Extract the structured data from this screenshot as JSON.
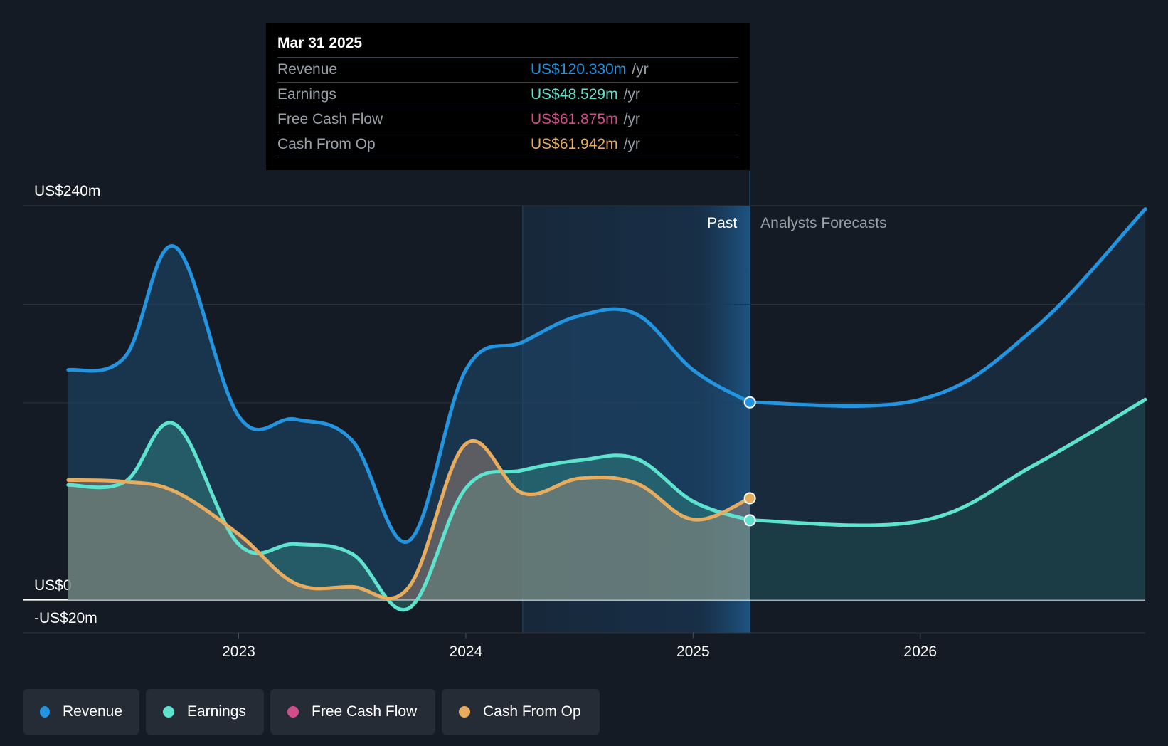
{
  "tooltip": {
    "date": "Mar 31 2025",
    "rows": [
      {
        "label": "Revenue",
        "value": "US$120.330m",
        "unit": "/yr",
        "color": "#2394df"
      },
      {
        "label": "Earnings",
        "value": "US$48.529m",
        "unit": "/yr",
        "color": "#5ee3cf"
      },
      {
        "label": "Free Cash Flow",
        "value": "US$61.875m",
        "unit": "/yr",
        "color": "#d14d8b"
      },
      {
        "label": "Cash From Op",
        "value": "US$61.942m",
        "unit": "/yr",
        "color": "#e8ac5f"
      }
    ]
  },
  "labels": {
    "past": "Past",
    "forecast": "Analysts Forecasts"
  },
  "legend": [
    {
      "label": "Revenue",
      "color": "#2394df"
    },
    {
      "label": "Earnings",
      "color": "#5ee3cf"
    },
    {
      "label": "Free Cash Flow",
      "color": "#d14d8b"
    },
    {
      "label": "Cash From Op",
      "color": "#e8ac5f"
    }
  ],
  "chart_data": {
    "type": "area",
    "y_tick_labels": [
      {
        "value": 240,
        "label": "US$240m"
      },
      {
        "value": 0,
        "label": "US$0"
      },
      {
        "value": -20,
        "label": "-US$20m"
      }
    ],
    "ylim": [
      -20,
      240
    ],
    "x_tick_labels": [
      "2023",
      "2024",
      "2025",
      "2026"
    ],
    "x_ticks": [
      2023,
      2024,
      2025,
      2026
    ],
    "xlim": [
      2022.05,
      2026.99
    ],
    "past_end": 2025.25,
    "highlight_start": 2024.25,
    "grid": true,
    "series": [
      {
        "name": "Revenue",
        "color": "#2394df",
        "past": [
          [
            2022.25,
            140
          ],
          [
            2022.5,
            148
          ],
          [
            2022.72,
            215
          ],
          [
            2023.0,
            112
          ],
          [
            2023.25,
            110
          ],
          [
            2023.5,
            97
          ],
          [
            2023.75,
            36
          ],
          [
            2024.0,
            140
          ],
          [
            2024.25,
            157
          ],
          [
            2024.5,
            173
          ],
          [
            2024.75,
            174
          ],
          [
            2025.0,
            140
          ],
          [
            2025.25,
            120.3
          ]
        ],
        "forecast": [
          [
            2025.25,
            120.3
          ],
          [
            2026.0,
            122
          ],
          [
            2026.5,
            165
          ],
          [
            2026.99,
            238
          ]
        ]
      },
      {
        "name": "Earnings",
        "color": "#5ee3cf",
        "past": [
          [
            2022.25,
            70
          ],
          [
            2022.5,
            72
          ],
          [
            2022.72,
            107
          ],
          [
            2023.0,
            34
          ],
          [
            2023.25,
            34
          ],
          [
            2023.5,
            28
          ],
          [
            2023.75,
            -5
          ],
          [
            2024.0,
            68
          ],
          [
            2024.25,
            79
          ],
          [
            2024.5,
            85
          ],
          [
            2024.75,
            86
          ],
          [
            2025.0,
            60
          ],
          [
            2025.25,
            48.5
          ]
        ],
        "forecast": [
          [
            2025.25,
            48.5
          ],
          [
            2026.0,
            48
          ],
          [
            2026.5,
            82
          ],
          [
            2026.99,
            122
          ]
        ]
      },
      {
        "name": "Cash From Op",
        "color": "#e8ac5f",
        "past": [
          [
            2022.25,
            73
          ],
          [
            2022.5,
            72
          ],
          [
            2022.72,
            66
          ],
          [
            2023.0,
            40
          ],
          [
            2023.25,
            10
          ],
          [
            2023.5,
            8
          ],
          [
            2023.75,
            8
          ],
          [
            2024.0,
            95
          ],
          [
            2024.25,
            65
          ],
          [
            2024.5,
            74
          ],
          [
            2024.75,
            71
          ],
          [
            2025.0,
            49
          ],
          [
            2025.25,
            61.9
          ]
        ]
      }
    ]
  }
}
